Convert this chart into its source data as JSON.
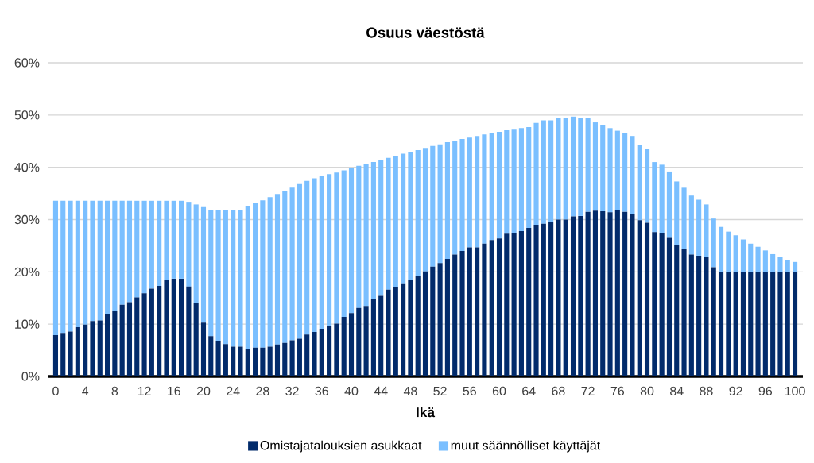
{
  "chart_data": {
    "type": "bar",
    "stacked": true,
    "title": "Osuus väestöstä",
    "xlabel": "Ikä",
    "categories": [
      "0",
      null,
      null,
      null,
      "4",
      null,
      null,
      null,
      "8",
      null,
      null,
      null,
      "12",
      null,
      null,
      null,
      "16",
      null,
      null,
      null,
      "20",
      null,
      null,
      null,
      "24",
      null,
      null,
      null,
      "28",
      null,
      null,
      null,
      "32",
      null,
      null,
      null,
      "36",
      null,
      null,
      null,
      "40",
      null,
      null,
      null,
      "44",
      null,
      null,
      null,
      "48",
      null,
      null,
      null,
      "52",
      null,
      null,
      null,
      "56",
      null,
      null,
      null,
      "60",
      null,
      null,
      null,
      "64",
      null,
      null,
      null,
      "68",
      null,
      null,
      null,
      "72",
      null,
      null,
      null,
      "76",
      null,
      null,
      null,
      "80",
      null,
      null,
      null,
      "84",
      null,
      null,
      null,
      "88",
      null,
      null,
      null,
      "92",
      null,
      null,
      null,
      "96",
      null,
      null,
      null,
      "100"
    ],
    "series": [
      {
        "name": "Omistajatalouksien asukkaat",
        "color": "#022b6b",
        "values": [
          7.9,
          8.3,
          8.6,
          9.4,
          9.9,
          10.6,
          10.7,
          12.0,
          12.6,
          13.7,
          14.2,
          15.1,
          15.9,
          16.8,
          17.3,
          18.4,
          18.7,
          18.7,
          17.2,
          14.1,
          10.3,
          7.7,
          6.8,
          6.2,
          5.7,
          5.7,
          5.3,
          5.5,
          5.5,
          5.7,
          6.1,
          6.4,
          6.9,
          7.2,
          8.0,
          8.5,
          9.1,
          9.7,
          10.1,
          11.4,
          12.1,
          13.1,
          13.5,
          14.8,
          15.4,
          16.6,
          17.0,
          17.8,
          18.4,
          19.3,
          20.1,
          21.0,
          21.7,
          22.5,
          23.3,
          24.0,
          24.7,
          24.7,
          25.4,
          26.1,
          26.4,
          27.3,
          27.5,
          27.8,
          28.4,
          29.0,
          29.2,
          29.5,
          30.0,
          30.0,
          30.6,
          30.7,
          31.5,
          31.7,
          31.6,
          31.4,
          31.9,
          31.5,
          31.0,
          29.9,
          29.4,
          27.6,
          27.4,
          26.5,
          25.2,
          24.4,
          23.3,
          23.1,
          22.9,
          20.9,
          20.0,
          20.0,
          20.0,
          20.0,
          20.0,
          20.0,
          20.0,
          20.0,
          20.0,
          20.0,
          20.0
        ]
      },
      {
        "name": "muut säännölliset käyttäjät",
        "color": "#7abfff",
        "values": [
          25.7,
          25.3,
          25.0,
          24.2,
          23.7,
          23.0,
          22.9,
          21.6,
          21.0,
          19.9,
          19.4,
          18.5,
          17.7,
          16.8,
          16.3,
          15.2,
          14.9,
          14.9,
          16.2,
          18.8,
          22.1,
          24.2,
          25.1,
          25.7,
          26.2,
          26.2,
          27.2,
          27.6,
          28.2,
          28.6,
          28.8,
          29.1,
          29.2,
          29.6,
          29.4,
          29.4,
          29.2,
          29.0,
          28.9,
          28.0,
          27.7,
          27.2,
          27.1,
          26.2,
          26.0,
          25.2,
          25.2,
          24.8,
          24.5,
          24.0,
          23.6,
          23.1,
          22.7,
          22.3,
          21.8,
          21.4,
          21.0,
          21.3,
          20.9,
          20.4,
          20.4,
          19.8,
          19.7,
          19.7,
          19.3,
          19.5,
          19.8,
          19.5,
          19.5,
          19.5,
          19.1,
          18.8,
          18.0,
          16.9,
          16.4,
          16.1,
          15.1,
          15.0,
          15.0,
          14.4,
          14.2,
          13.4,
          13.1,
          12.7,
          12.1,
          11.7,
          11.3,
          10.7,
          10.0,
          9.3,
          8.6,
          7.7,
          7.0,
          6.2,
          5.4,
          4.8,
          4.1,
          3.4,
          2.9,
          2.3,
          1.9
        ]
      }
    ],
    "ylim": [
      0,
      60
    ],
    "yticks": [
      {
        "value": 0,
        "label": "0%"
      },
      {
        "value": 10,
        "label": "10%"
      },
      {
        "value": 20,
        "label": "20%"
      },
      {
        "value": 30,
        "label": "30%"
      },
      {
        "value": 40,
        "label": "40%"
      },
      {
        "value": 50,
        "label": "50%"
      },
      {
        "value": 60,
        "label": "60%"
      }
    ],
    "grid": "y",
    "legend": "bottom"
  }
}
